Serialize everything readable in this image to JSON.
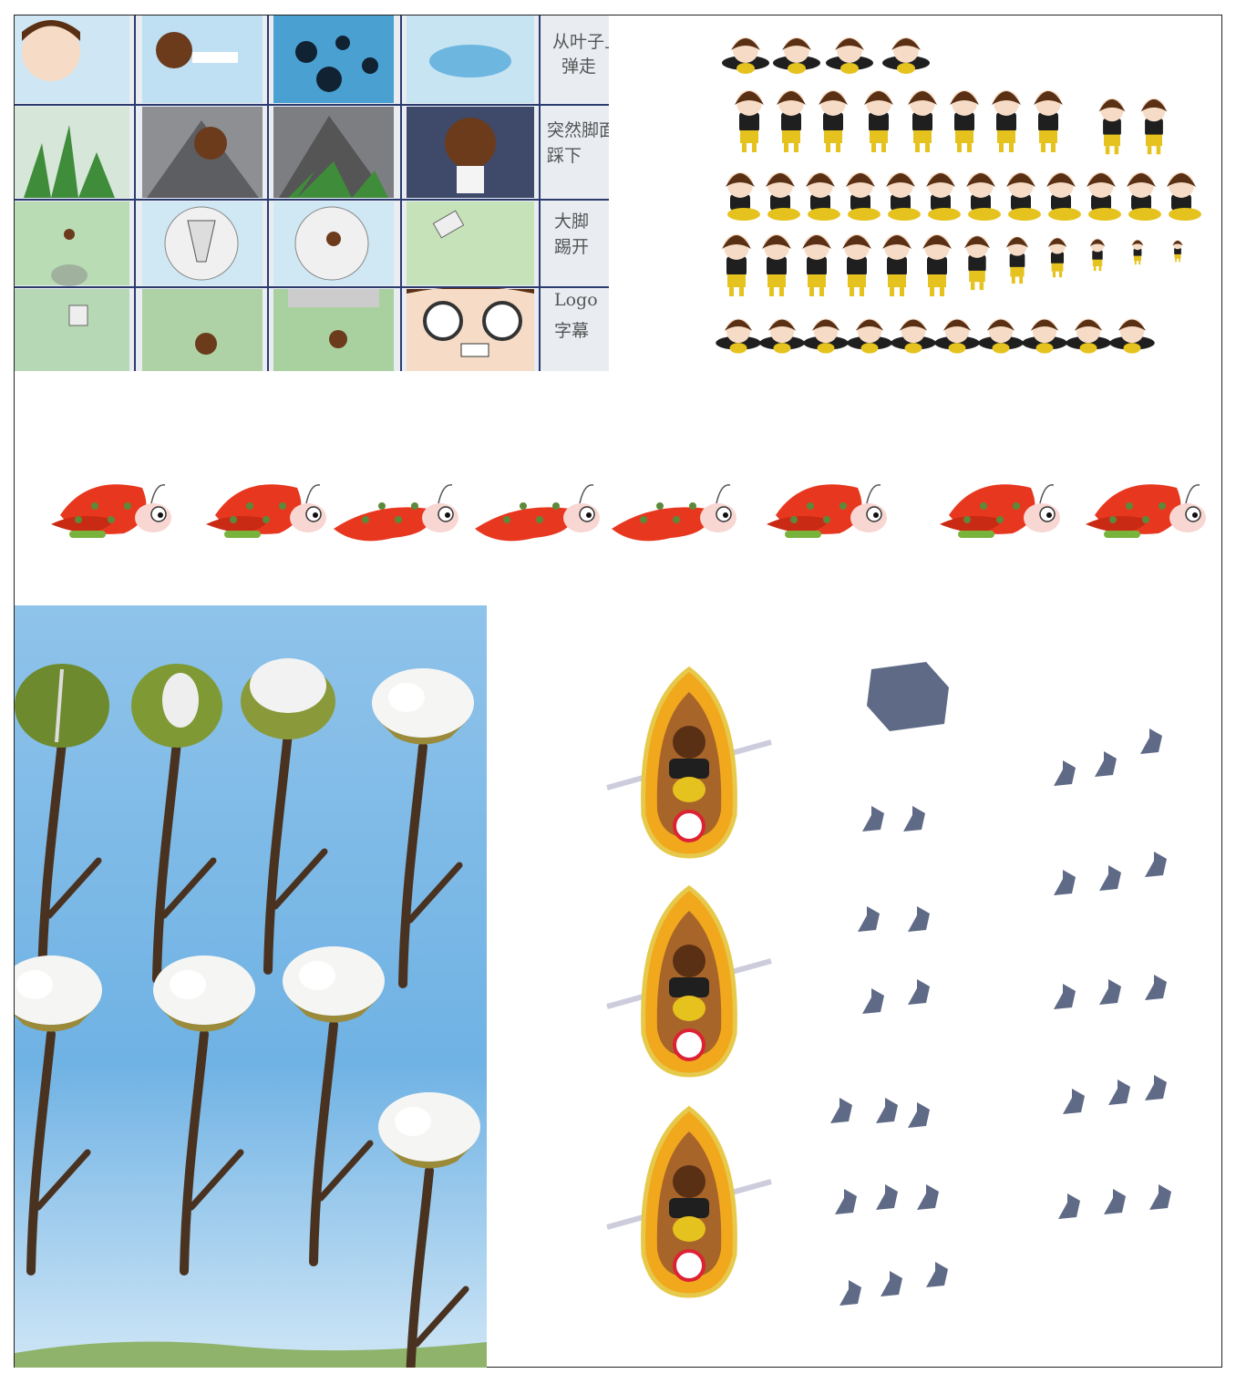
{
  "storyboard": {
    "notes": [
      {
        "line1": "从叶子上",
        "line2": "弹走"
      },
      {
        "line1": "突然脚面",
        "line2": "踩下"
      },
      {
        "line1": "大脚",
        "line2": "踢开"
      },
      {
        "line1": "Logo",
        "line2": "字幕"
      }
    ]
  },
  "colors": {
    "sky": "#8fc3ea",
    "butterfly": "#e8371f",
    "boat": "#f2a81c",
    "rock": "#5f6a86",
    "hair": "#5a3015",
    "shirt": "#1f1f1f",
    "pants": "#e5c21e"
  }
}
